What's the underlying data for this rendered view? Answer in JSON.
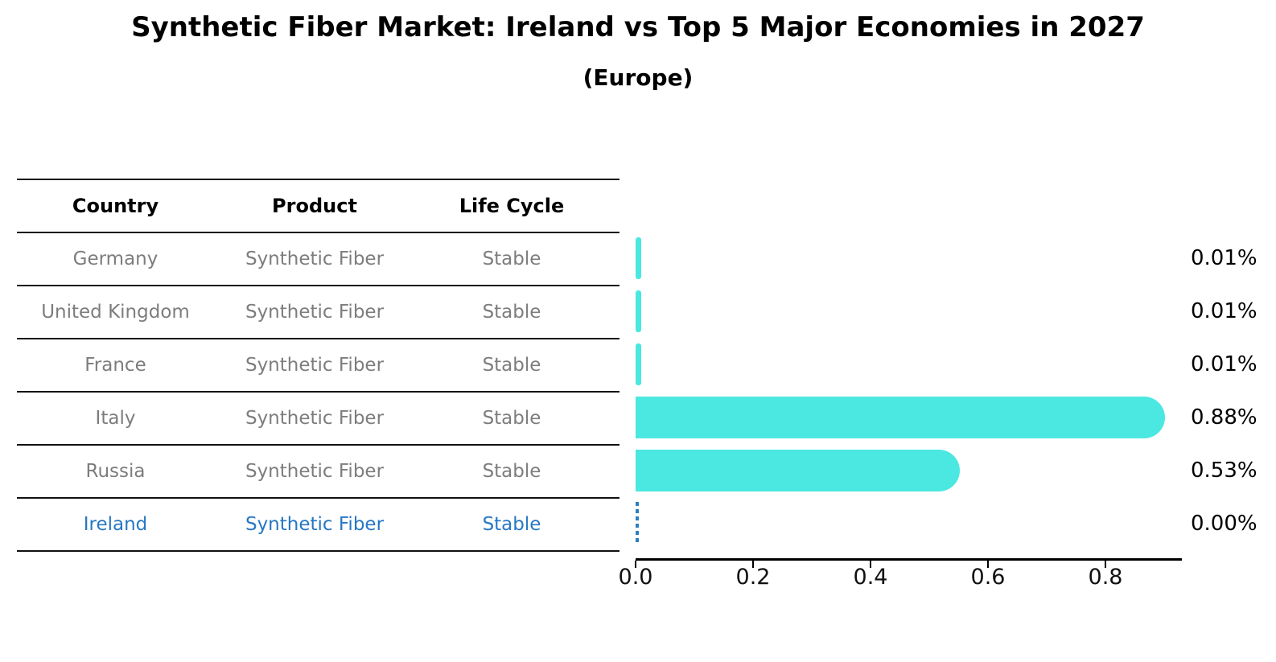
{
  "title": "Synthetic Fiber Market: Ireland vs Top 5 Major Economies in 2027",
  "subtitle": "(Europe)",
  "table": {
    "columns": [
      "Country",
      "Product",
      "Life Cycle"
    ],
    "rows": [
      {
        "country": "Germany",
        "product": "Synthetic Fiber",
        "life_cycle": "Stable",
        "highlight": false
      },
      {
        "country": "United Kingdom",
        "product": "Synthetic Fiber",
        "life_cycle": "Stable",
        "highlight": false
      },
      {
        "country": "France",
        "product": "Synthetic Fiber",
        "life_cycle": "Stable",
        "highlight": false
      },
      {
        "country": "Italy",
        "product": "Synthetic Fiber",
        "life_cycle": "Stable",
        "highlight": false
      },
      {
        "country": "Russia",
        "product": "Synthetic Fiber",
        "life_cycle": "Stable",
        "highlight": false
      },
      {
        "country": "Ireland",
        "product": "Synthetic Fiber",
        "life_cycle": "Stable",
        "highlight": true
      }
    ]
  },
  "chart_data": {
    "type": "bar",
    "orientation": "horizontal",
    "title": "Synthetic Fiber Market: Ireland vs Top 5 Major Economies in 2027",
    "subtitle": "(Europe)",
    "categories": [
      "Germany",
      "United Kingdom",
      "France",
      "Italy",
      "Russia",
      "Ireland"
    ],
    "values": [
      0.01,
      0.01,
      0.01,
      0.88,
      0.53,
      0.0
    ],
    "value_labels": [
      "0.01%",
      "0.01%",
      "0.01%",
      "0.88%",
      "0.53%",
      "0.00%"
    ],
    "xticks": [
      "0.0",
      "0.2",
      "0.4",
      "0.6",
      "0.8"
    ],
    "xtick_values": [
      0.0,
      0.2,
      0.4,
      0.6,
      0.8
    ],
    "xlim": [
      0.0,
      0.93
    ],
    "grid": false,
    "legend": false,
    "bar_color": "#4be8e1",
    "highlight_index": 5,
    "highlight_style": "dashed-outline",
    "highlight_color": "#2e7fc1"
  },
  "colors": {
    "background": "#ffffff",
    "row_text": "#7d7d7d",
    "highlight_text": "#2777c4",
    "header_text": "#000000",
    "bar": "#4be8e1",
    "axis": "#000000"
  }
}
